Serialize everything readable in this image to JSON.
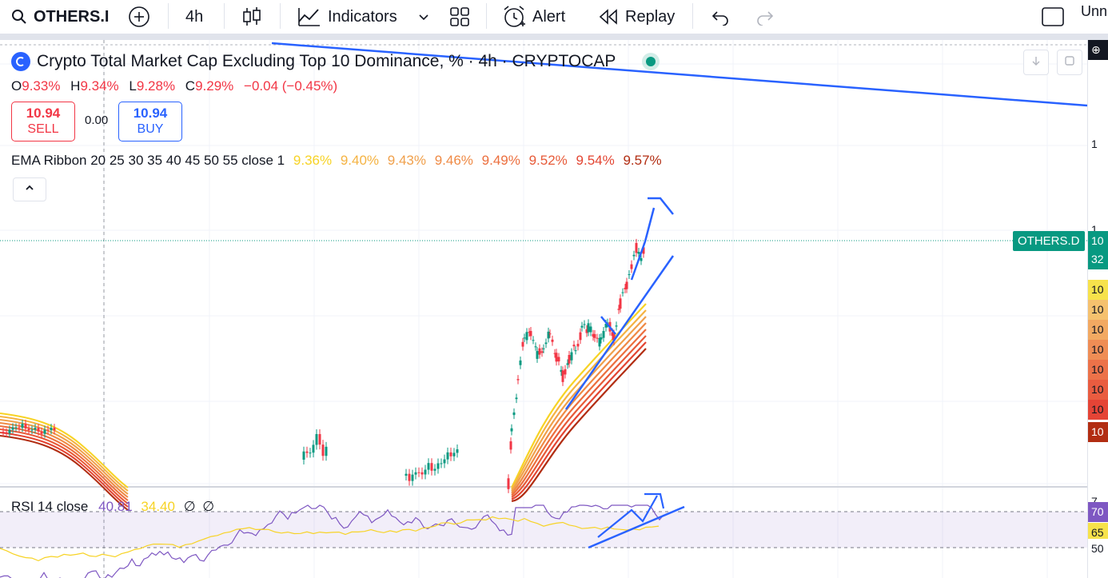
{
  "toolbar": {
    "symbol": "OTHERS.I",
    "interval": "4h",
    "indicators_label": "Indicators",
    "alert_label": "Alert",
    "replay_label": "Replay",
    "unnamed_label": "Unn"
  },
  "legend": {
    "title": "Crypto Total Market Cap Excluding Top 10 Dominance, % · 4h · CRYPTOCAP",
    "ohlc": {
      "o_key": "O",
      "o": "9.33%",
      "h_key": "H",
      "h": "9.34%",
      "l_key": "L",
      "l": "9.28%",
      "c_key": "C",
      "c": "9.29%",
      "change": "−0.04 (−0.45%)"
    },
    "sell": {
      "price": "10.94",
      "label": "SELL"
    },
    "buy": {
      "price": "10.94",
      "label": "BUY"
    },
    "spread": "0.00",
    "ema": {
      "label": "EMA Ribbon 20 25 30 35 40 45 50 55 close 1",
      "values": [
        "9.36%",
        "9.40%",
        "9.43%",
        "9.46%",
        "9.49%",
        "9.52%",
        "9.54%",
        "9.57%"
      ],
      "colors": [
        "#f7d325",
        "#f5b342",
        "#f0a04b",
        "#ef8a45",
        "#ec6f3e",
        "#e75a38",
        "#e34532",
        "#b22d12"
      ]
    },
    "rsi": {
      "label": "RSI 14 close",
      "value": "40.81",
      "ma": "34.40",
      "extra1": "∅",
      "extra2": "∅"
    }
  },
  "price_scale": {
    "tag_symbol": "OTHERS.D",
    "labels": [
      {
        "text": "1",
        "color": "#131722",
        "bg": "#ffffff"
      },
      {
        "text": "1",
        "color": "#131722",
        "bg": "#ffffff"
      },
      {
        "text": "10",
        "color": "#ffffff",
        "bg": "#089981"
      },
      {
        "text": "32",
        "color": "#ffffff",
        "bg": "#089981"
      },
      {
        "text": "10",
        "color": "#131722",
        "bg": "#f7e24b"
      },
      {
        "text": "10",
        "color": "#131722",
        "bg": "#f5c16e"
      },
      {
        "text": "10",
        "color": "#131722",
        "bg": "#f2a962"
      },
      {
        "text": "10",
        "color": "#131722",
        "bg": "#ef8d55"
      },
      {
        "text": "10",
        "color": "#131722",
        "bg": "#ec7249"
      },
      {
        "text": "10",
        "color": "#131722",
        "bg": "#e95c40"
      },
      {
        "text": "10",
        "color": "#131722",
        "bg": "#e54436"
      },
      {
        "text": "10",
        "color": "#ffffff",
        "bg": "#b22d12"
      },
      {
        "text": "7",
        "color": "#131722",
        "bg": "#ffffff"
      },
      {
        "text": "70",
        "color": "#ffffff",
        "bg": "#7e57c2"
      },
      {
        "text": "65",
        "color": "#131722",
        "bg": "#f7e24b"
      },
      {
        "text": "50",
        "color": "#131722",
        "bg": "#ffffff"
      }
    ]
  },
  "colors": {
    "up": "#089981",
    "down": "#f23645",
    "rsi_line": "#7e57c2",
    "rsi_ma": "#f7d325",
    "drawing": "#2962ff"
  }
}
